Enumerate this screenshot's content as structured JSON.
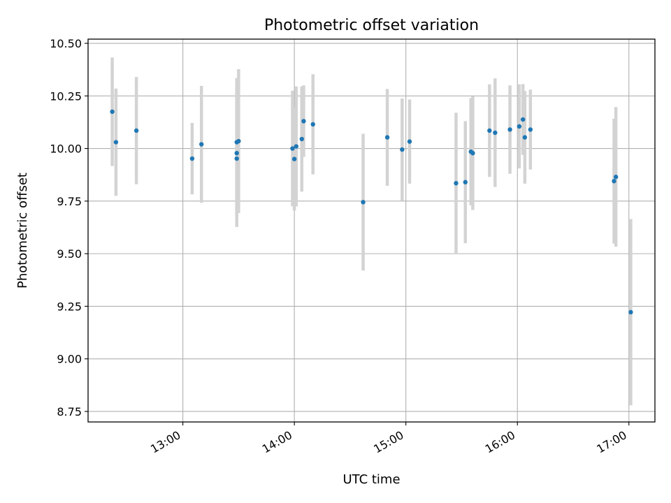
{
  "chart_data": {
    "type": "scatter",
    "title": "Photometric offset variation",
    "xlabel": "UTC time",
    "ylabel": "Photometric offset",
    "x_axis_type": "time",
    "xlim": [
      "12:09",
      "17:14"
    ],
    "ylim": [
      8.7,
      10.52
    ],
    "xticks": [
      "13:00",
      "14:00",
      "15:00",
      "16:00",
      "17:00"
    ],
    "yticks": [
      "8.75",
      "9.00",
      "9.25",
      "9.50",
      "9.75",
      "10.00",
      "10.25",
      "10.50"
    ],
    "grid": true,
    "legend": "none",
    "colors": {
      "points": "#1f77b4",
      "error_bars": "#d3d3d3",
      "grid": "#b0b0b0"
    },
    "series": [
      {
        "points": [
          {
            "x": "12:22",
            "y": 10.175,
            "yerr": 0.258
          },
          {
            "x": "12:24",
            "y": 10.03,
            "yerr": 0.255
          },
          {
            "x": "12:35",
            "y": 10.085,
            "yerr": 0.255
          },
          {
            "x": "13:05",
            "y": 9.952,
            "yerr": 0.17
          },
          {
            "x": "13:10",
            "y": 10.02,
            "yerr": 0.278
          },
          {
            "x": "13:29",
            "y": 9.978,
            "yerr": 0.31
          },
          {
            "x": "13:29",
            "y": 9.952,
            "yerr": 0.325
          },
          {
            "x": "13:29",
            "y": 10.03,
            "yerr": 0.305
          },
          {
            "x": "13:30",
            "y": 10.035,
            "yerr": 0.342
          },
          {
            "x": "13:59",
            "y": 10.0,
            "yerr": 0.275
          },
          {
            "x": "14:00",
            "y": 9.95,
            "yerr": 0.245
          },
          {
            "x": "14:01",
            "y": 10.01,
            "yerr": 0.285
          },
          {
            "x": "14:04",
            "y": 10.045,
            "yerr": 0.25
          },
          {
            "x": "14:05",
            "y": 10.13,
            "yerr": 0.17
          },
          {
            "x": "14:10",
            "y": 10.115,
            "yerr": 0.238
          },
          {
            "x": "14:37",
            "y": 9.745,
            "yerr": 0.325
          },
          {
            "x": "14:50",
            "y": 10.053,
            "yerr": 0.23
          },
          {
            "x": "14:58",
            "y": 9.995,
            "yerr": 0.243
          },
          {
            "x": "15:02",
            "y": 10.033,
            "yerr": 0.2
          },
          {
            "x": "15:27",
            "y": 9.835,
            "yerr": 0.335
          },
          {
            "x": "15:32",
            "y": 9.84,
            "yerr": 0.29
          },
          {
            "x": "15:35",
            "y": 9.985,
            "yerr": 0.255
          },
          {
            "x": "15:36",
            "y": 9.978,
            "yerr": 0.27
          },
          {
            "x": "15:45",
            "y": 10.085,
            "yerr": 0.22
          },
          {
            "x": "15:48",
            "y": 10.075,
            "yerr": 0.258
          },
          {
            "x": "15:56",
            "y": 10.09,
            "yerr": 0.21
          },
          {
            "x": "16:01",
            "y": 10.105,
            "yerr": 0.2
          },
          {
            "x": "16:03",
            "y": 10.138,
            "yerr": 0.168
          },
          {
            "x": "16:04",
            "y": 10.053,
            "yerr": 0.22
          },
          {
            "x": "16:07",
            "y": 10.09,
            "yerr": 0.19
          },
          {
            "x": "16:52",
            "y": 9.845,
            "yerr": 0.297
          },
          {
            "x": "16:53",
            "y": 9.865,
            "yerr": 0.332
          },
          {
            "x": "17:01",
            "y": 9.222,
            "yerr": 0.443
          }
        ]
      }
    ]
  }
}
